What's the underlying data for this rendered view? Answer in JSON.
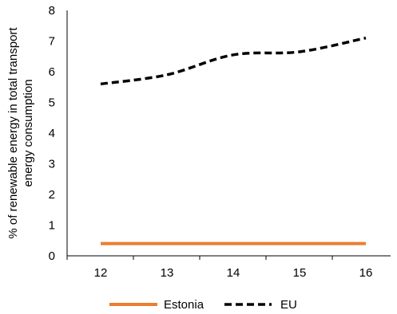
{
  "chart_data": {
    "type": "line",
    "title": "",
    "xlabel": "",
    "ylabel_lines": [
      "% of renewable energy in total transport",
      "energy consumption"
    ],
    "x": [
      12,
      13,
      14,
      15,
      16
    ],
    "ylim": [
      0,
      8
    ],
    "yticks": [
      0,
      1,
      2,
      3,
      4,
      5,
      6,
      7,
      8
    ],
    "grid": false,
    "legend_position": "bottom",
    "series": [
      {
        "name": "Estonia",
        "values": [
          0.4,
          0.4,
          0.4,
          0.4,
          0.4
        ],
        "color": "#ED7D31",
        "style": "solid"
      },
      {
        "name": "EU",
        "values": [
          5.6,
          5.9,
          6.55,
          6.65,
          7.1
        ],
        "color": "#000000",
        "style": "dashed"
      }
    ]
  }
}
